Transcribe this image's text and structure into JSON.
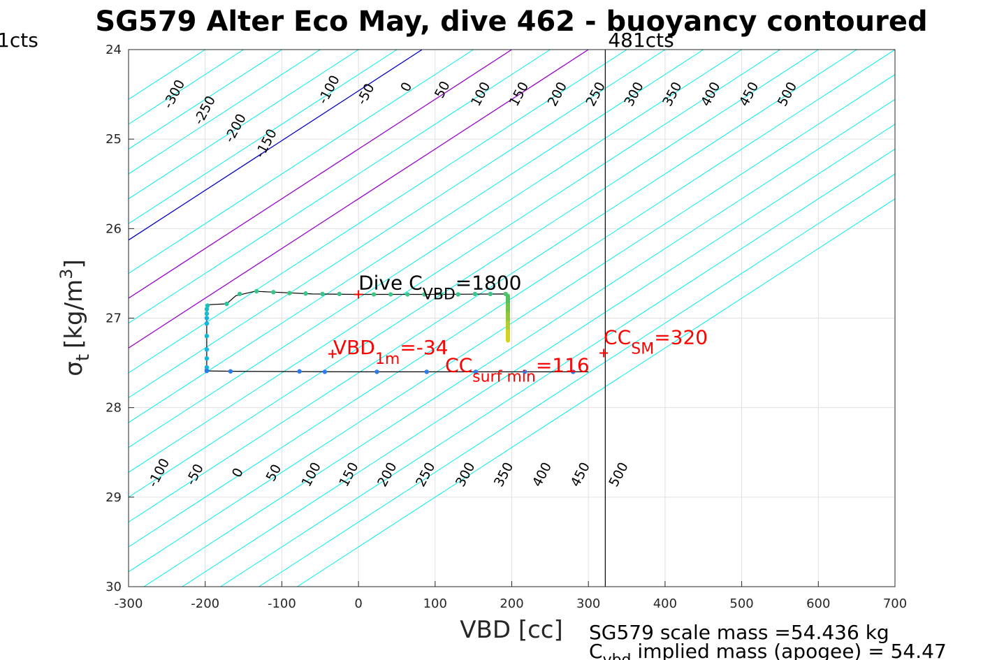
{
  "chart_data": {
    "type": "line",
    "title": "SG579 Alter Eco May, dive 462 - buoyancy contoured",
    "xlabel": "VBD [cc]",
    "ylabel": {
      "sigma": "σ",
      "sub": "t",
      "unit": "[kg/m",
      "sup": "3",
      "close": "]"
    },
    "xlim": [
      -300,
      700
    ],
    "ylim": [
      24,
      30
    ],
    "y_reversed": true,
    "grid": true,
    "x_ticks": [
      -300,
      -200,
      -100,
      0,
      100,
      200,
      300,
      400,
      500,
      600,
      700
    ],
    "x_tick_labels": [
      "-300",
      "-200",
      "-100",
      "0",
      "100",
      "200",
      "300",
      "400",
      "500",
      "600",
      "700"
    ],
    "y_ticks": [
      24,
      25,
      26,
      27,
      28,
      29,
      30
    ],
    "y_tick_labels": [
      "24",
      "25",
      "26",
      "27",
      "28",
      "29",
      "30"
    ],
    "contour_slope_cc_per_sigma": -180,
    "contours": [
      {
        "label": "-300",
        "x_at_24": -200,
        "color": "#00f0f0"
      },
      {
        "label": "-250",
        "x_at_24": -150,
        "color": "#00f0f0"
      },
      {
        "label": "-200",
        "x_at_24": -100,
        "color": "#00f0f0"
      },
      {
        "label": "-150",
        "x_at_24": -50,
        "color": "#00f0f0"
      },
      {
        "label": "-100",
        "x_at_24": 0,
        "color": "#00f0f0"
      },
      {
        "label": "-50",
        "x_at_24": 50,
        "color": "#00f0f0"
      },
      {
        "label": "0",
        "x_at_24": 83,
        "color": "#0000cc"
      },
      {
        "label": "50",
        "x_at_24": 150,
        "color": "#00f0f0"
      },
      {
        "label": "100",
        "x_at_24": 200,
        "color": "#9900cc"
      },
      {
        "label": "150",
        "x_at_24": 250,
        "color": "#00f0f0"
      },
      {
        "label": "200",
        "x_at_24": 300,
        "color": "#9900cc"
      },
      {
        "label": "250",
        "x_at_24": 350,
        "color": "#00f0f0"
      },
      {
        "label": "300",
        "x_at_24": 400,
        "color": "#00f0f0"
      },
      {
        "label": "350",
        "x_at_24": 450,
        "color": "#00f0f0"
      },
      {
        "label": "400",
        "x_at_24": 500,
        "color": "#00f0f0"
      },
      {
        "label": "450",
        "x_at_24": 550,
        "color": "#00f0f0"
      },
      {
        "label": "500",
        "x_at_24": 600,
        "color": "#00f0f0"
      },
      {
        "label": "",
        "x_at_24": 650,
        "color": "#00f0f0"
      },
      {
        "label": "",
        "x_at_24": 700,
        "color": "#00f0f0"
      },
      {
        "label": "",
        "x_at_24": 750,
        "color": "#00f0f0"
      },
      {
        "label": "",
        "x_at_24": 800,
        "color": "#00f0f0"
      },
      {
        "label": "",
        "x_at_24": 850,
        "color": "#00f0f0"
      },
      {
        "label": "",
        "x_at_24": 900,
        "color": "#00f0f0"
      },
      {
        "label": "",
        "x_at_24": 950,
        "color": "#00f0f0"
      },
      {
        "label": "",
        "x_at_24": 1000,
        "color": "#00f0f0"
      }
    ],
    "top_contour_labels": [
      {
        "text": "-300",
        "x": -240,
        "y": 24.5
      },
      {
        "text": "-250",
        "x": -200,
        "y": 24.68
      },
      {
        "text": "-200",
        "x": -160,
        "y": 24.88
      },
      {
        "text": "-150",
        "x": -120,
        "y": 25.05
      },
      {
        "text": "-100",
        "x": -38,
        "y": 24.45
      },
      {
        "text": "-50",
        "x": 10,
        "y": 24.5
      },
      {
        "text": "0",
        "x": 63,
        "y": 24.42
      },
      {
        "text": "50",
        "x": 110,
        "y": 24.45
      },
      {
        "text": "100",
        "x": 160,
        "y": 24.5
      },
      {
        "text": "150",
        "x": 210,
        "y": 24.5
      },
      {
        "text": "200",
        "x": 260,
        "y": 24.5
      },
      {
        "text": "250",
        "x": 310,
        "y": 24.5
      },
      {
        "text": "300",
        "x": 360,
        "y": 24.5
      },
      {
        "text": "350",
        "x": 410,
        "y": 24.5
      },
      {
        "text": "400",
        "x": 460,
        "y": 24.5
      },
      {
        "text": "450",
        "x": 510,
        "y": 24.5
      },
      {
        "text": "500",
        "x": 560,
        "y": 24.5
      }
    ],
    "bottom_contour_labels": [
      {
        "text": "-100",
        "x": -260,
        "y": 28.73
      },
      {
        "text": "-50",
        "x": -213,
        "y": 28.75
      },
      {
        "text": "0",
        "x": -157,
        "y": 28.73
      },
      {
        "text": "50",
        "x": -110,
        "y": 28.73
      },
      {
        "text": "100",
        "x": -61,
        "y": 28.75
      },
      {
        "text": "150",
        "x": -12,
        "y": 28.75
      },
      {
        "text": "200",
        "x": 38,
        "y": 28.75
      },
      {
        "text": "250",
        "x": 88,
        "y": 28.75
      },
      {
        "text": "300",
        "x": 140,
        "y": 28.75
      },
      {
        "text": "350",
        "x": 190,
        "y": 28.75
      },
      {
        "text": "400",
        "x": 240,
        "y": 28.75
      },
      {
        "text": "450",
        "x": 290,
        "y": 28.75
      },
      {
        "text": "500",
        "x": 340,
        "y": 28.75
      }
    ],
    "vertical_line": {
      "x": 322,
      "label": "481cts",
      "color": "#000000"
    },
    "left_label": "1cts",
    "dive_path": [
      [
        -198,
        27.59
      ],
      [
        -198,
        27.4
      ],
      [
        -198,
        27.1
      ],
      [
        -198,
        26.95
      ],
      [
        -196,
        26.85
      ],
      [
        -172,
        26.84
      ],
      [
        -160,
        26.75
      ],
      [
        -135,
        26.7
      ],
      [
        -110,
        26.71
      ],
      [
        -60,
        26.73
      ],
      [
        0,
        26.735
      ],
      [
        100,
        26.735
      ],
      [
        192,
        26.73
      ],
      [
        195,
        26.8
      ],
      [
        195,
        26.95
      ],
      [
        195,
        27.1
      ],
      [
        195,
        27.25
      ]
    ],
    "climb_path": [
      [
        -198,
        27.59
      ],
      [
        -150,
        27.595
      ],
      [
        0,
        27.6
      ],
      [
        150,
        27.6
      ],
      [
        280,
        27.6
      ],
      [
        300,
        27.6
      ]
    ],
    "dive_points": [
      {
        "x": -198,
        "y": 27.58,
        "color": "#10b5e0"
      },
      {
        "x": -198,
        "y": 27.55,
        "color": "#10b5e0"
      },
      {
        "x": -198,
        "y": 27.45,
        "color": "#10b5e0"
      },
      {
        "x": -198,
        "y": 27.35,
        "color": "#10b5e0"
      },
      {
        "x": -198,
        "y": 27.2,
        "color": "#10b5e0"
      },
      {
        "x": -198,
        "y": 27.06,
        "color": "#10b5e0"
      },
      {
        "x": -198,
        "y": 27.0,
        "color": "#10b5e0"
      },
      {
        "x": -198,
        "y": 26.95,
        "color": "#18bfc8"
      },
      {
        "x": -198,
        "y": 26.9,
        "color": "#18bfc8"
      },
      {
        "x": -197,
        "y": 26.86,
        "color": "#20c0b8"
      },
      {
        "x": -172,
        "y": 26.84,
        "color": "#2dc49a"
      },
      {
        "x": -155,
        "y": 26.73,
        "color": "#35c48e"
      },
      {
        "x": -133,
        "y": 26.7,
        "color": "#38c58a"
      },
      {
        "x": -111,
        "y": 26.71,
        "color": "#38c58a"
      },
      {
        "x": -90,
        "y": 26.72,
        "color": "#3ac688"
      },
      {
        "x": -69,
        "y": 26.725,
        "color": "#3ac688"
      },
      {
        "x": -47,
        "y": 26.73,
        "color": "#3ac688"
      },
      {
        "x": -25,
        "y": 26.73,
        "color": "#3ac688"
      },
      {
        "x": 20,
        "y": 26.735,
        "color": "#3ac688"
      },
      {
        "x": 42,
        "y": 26.735,
        "color": "#3ac688"
      },
      {
        "x": 64,
        "y": 26.735,
        "color": "#3ac688"
      },
      {
        "x": 86,
        "y": 26.735,
        "color": "#3ac688"
      },
      {
        "x": 108,
        "y": 26.735,
        "color": "#3ac688"
      },
      {
        "x": 130,
        "y": 26.735,
        "color": "#3ac688"
      },
      {
        "x": 152,
        "y": 26.73,
        "color": "#3ac688"
      },
      {
        "x": 172,
        "y": 26.73,
        "color": "#3ac688"
      },
      {
        "x": 192,
        "y": 26.73,
        "color": "#4cc46e"
      }
    ],
    "colored_segment": [
      {
        "x": 195,
        "y": 26.75,
        "color": "#50c060"
      },
      {
        "x": 195,
        "y": 26.85,
        "color": "#70c448"
      },
      {
        "x": 195,
        "y": 26.95,
        "color": "#90c838"
      },
      {
        "x": 195,
        "y": 27.05,
        "color": "#b4cc2c"
      },
      {
        "x": 195,
        "y": 27.15,
        "color": "#d4d420"
      },
      {
        "x": 195,
        "y": 27.25,
        "color": "#eeda18"
      }
    ],
    "climb_points": [
      {
        "x": -198,
        "y": 27.59,
        "color": "#2c7bec"
      },
      {
        "x": -167,
        "y": 27.595,
        "color": "#2c7bec"
      },
      {
        "x": -77,
        "y": 27.595,
        "color": "#2c7bec"
      },
      {
        "x": -44,
        "y": 27.6,
        "color": "#2c7bec"
      },
      {
        "x": 24,
        "y": 27.6,
        "color": "#2c7bec"
      },
      {
        "x": 89,
        "y": 27.6,
        "color": "#2c7bec"
      },
      {
        "x": 153,
        "y": 27.6,
        "color": "#2c7bec"
      },
      {
        "x": 217,
        "y": 27.6,
        "color": "#2c7bec"
      },
      {
        "x": 280,
        "y": 27.6,
        "color": "#2c7bec"
      }
    ],
    "red_markers": [
      {
        "x": 0,
        "y": 26.735
      },
      {
        "x": -34,
        "y": 27.4
      },
      {
        "x": 320,
        "y": 27.39
      }
    ],
    "annotations": {
      "dive_cvbd": {
        "main": "Dive C",
        "sub": "VBD",
        "tail": "=1800",
        "x": 0,
        "y": 26.68
      },
      "vbd_1m": {
        "main": "VBD",
        "sub": "1m",
        "tail": "=-34",
        "x": -33,
        "y": 27.4
      },
      "cc_surf": {
        "main": "CC",
        "sub": "surf min",
        "tail": "=116",
        "x": 113,
        "y": 27.6
      },
      "cc_sm": {
        "main": "CC",
        "sub": "SM",
        "tail": "=320",
        "x": 320,
        "y": 27.29
      }
    }
  },
  "footer": {
    "line1": "SG579 scale mass =54.436 kg",
    "line2_main": "C",
    "line2_sub": "vbd",
    "line2_tail": " implied mass (apogee) = 54.47"
  },
  "colors": {
    "contour": "#00f0f0",
    "zero_contour": "#0000cc",
    "purple_contour": "#9900cc",
    "path": "#000000",
    "annotation_red": "#ff0000",
    "grid": "#e0e0e0"
  }
}
